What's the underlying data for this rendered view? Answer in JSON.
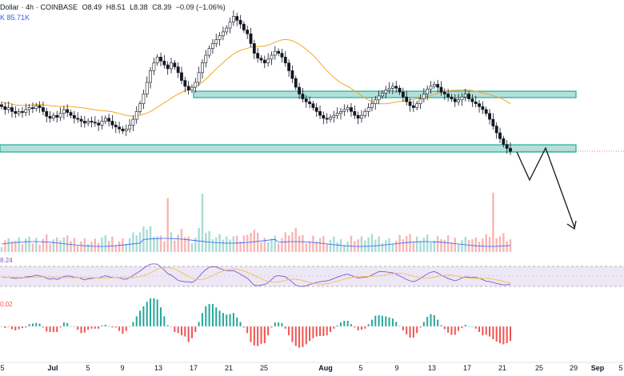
{
  "header": {
    "pair": "Dollar",
    "timeframe": "4h",
    "exchange": "COINBASE",
    "open": "O8.49",
    "high": "H8.51",
    "low": "L8.38",
    "close": "C8.39",
    "change": "−0.09 (−1.06%)",
    "volume": "K  85.71K"
  },
  "indicators": {
    "rsi_value": "8.24",
    "macd_value": "0.02"
  },
  "x_axis": {
    "labels": [
      "5",
      "Jul",
      "5",
      "9",
      "13",
      "17",
      "21",
      "25",
      "Aug",
      "5",
      "9",
      "13",
      "17",
      "21",
      "25",
      "29",
      "Sep",
      "5"
    ]
  },
  "colors": {
    "up": "#26a69a",
    "down": "#ef5350",
    "zone_fill": "#b2e0dc",
    "zone_stroke": "#22ab94",
    "ma": "#f5a623",
    "rsi_line": "#7e57c2",
    "rsi_ma": "#f5c24b",
    "rsi_band": "#ede7f6",
    "volume_ma": "#2962ff",
    "projection": "#131722"
  },
  "chart_data": {
    "type": "candlestick",
    "series": [
      {
        "name": "price",
        "values": [
          8.85,
          8.82,
          8.84,
          8.8,
          8.78,
          8.8,
          8.79,
          8.82,
          8.84,
          8.83,
          8.86,
          8.84,
          8.8,
          8.75,
          8.73,
          8.76,
          8.74,
          8.78,
          8.82,
          8.79,
          8.76,
          8.73,
          8.72,
          8.7,
          8.68,
          8.7,
          8.69,
          8.68,
          8.66,
          8.7,
          8.73,
          8.7,
          8.66,
          8.64,
          8.62,
          8.6,
          8.62,
          8.66,
          8.72,
          8.8,
          8.88,
          8.98,
          9.1,
          9.22,
          9.3,
          9.36,
          9.32,
          9.28,
          9.24,
          9.3,
          9.26,
          9.2,
          9.12,
          9.06,
          9.02,
          9.05,
          9.1,
          9.2,
          9.3,
          9.38,
          9.45,
          9.5,
          9.54,
          9.58,
          9.62,
          9.66,
          9.72,
          9.78,
          9.74,
          9.7,
          9.64,
          9.6,
          9.5,
          9.4,
          9.35,
          9.33,
          9.3,
          9.34,
          9.38,
          9.42,
          9.4,
          9.36,
          9.3,
          9.22,
          9.14,
          9.05,
          8.98,
          8.93,
          8.9,
          8.88,
          8.84,
          8.8,
          8.76,
          8.73,
          8.72,
          8.74,
          8.76,
          8.78,
          8.8,
          8.82,
          8.84,
          8.8,
          8.76,
          8.73,
          8.76,
          8.8,
          8.84,
          8.88,
          8.92,
          8.96,
          8.99,
          9.02,
          9.04,
          9.06,
          9.04,
          9.0,
          8.95,
          8.9,
          8.86,
          8.84,
          8.88,
          8.93,
          8.98,
          9.03,
          9.06,
          9.08,
          9.05,
          9.0,
          8.98,
          8.95,
          8.93,
          8.9,
          8.92,
          8.95,
          8.98,
          8.93,
          8.9,
          8.88,
          8.85,
          8.82,
          8.78,
          8.72,
          8.65,
          8.58,
          8.52,
          8.46,
          8.42,
          8.39
        ]
      }
    ],
    "annotations": [
      "support zone",
      "resistance zone",
      "moving average",
      "projected zig-zag path down"
    ]
  }
}
